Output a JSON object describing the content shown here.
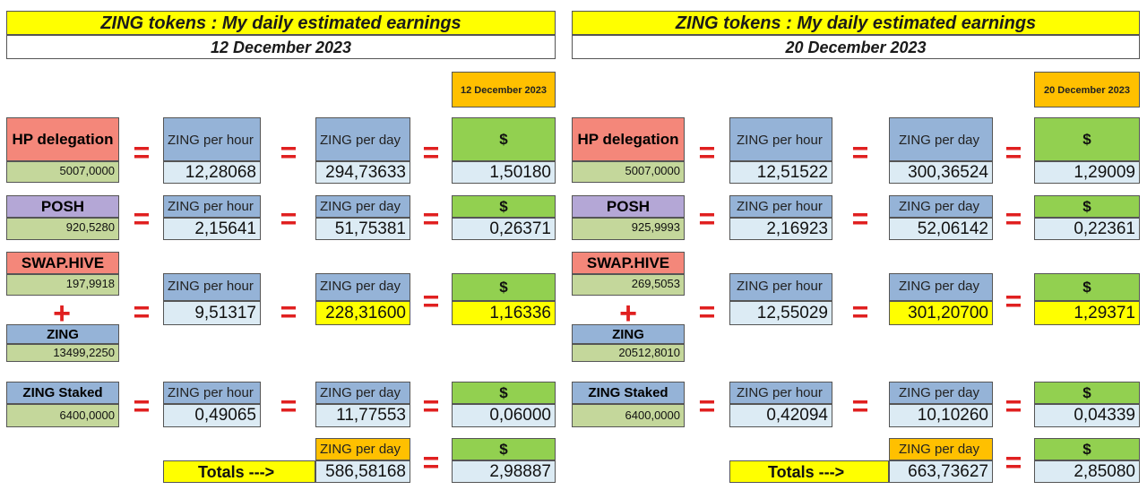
{
  "labels": {
    "title": "ZING tokens : My daily estimated earnings",
    "hp": "HP delegation",
    "posh": "POSH",
    "swap": "SWAP.HIVE",
    "zing": "ZING",
    "zing_staked": "ZING Staked",
    "per_hour": "ZING per hour",
    "per_day": "ZING per day",
    "dollar": "$",
    "equals": "=",
    "plus": "+",
    "totals": "Totals --->"
  },
  "colors": {
    "title_bg": "#ffff00",
    "hp_bg": "#f4877a",
    "posh_bg": "#b4a7d6",
    "header_blue": "#95b3d7",
    "value_bg": "#dcebf4",
    "source_value_bg": "#c4d79b",
    "dollar_green": "#92d050",
    "date_orange": "#ffc000",
    "highlight_yellow": "#ffff00",
    "equals_red": "#e02020"
  },
  "panels": [
    {
      "date": "12 December 2023",
      "rows": {
        "hp": {
          "amount": "5007,0000",
          "per_hour": "12,28068",
          "per_day": "294,73633",
          "usd": "1,50180"
        },
        "posh": {
          "amount": "920,5280",
          "per_hour": "2,15641",
          "per_day": "51,75381",
          "usd": "0,26371"
        },
        "pool": {
          "swap_amount": "197,9918",
          "zing_amount": "13499,2250",
          "per_hour": "9,51317",
          "per_day": "228,31600",
          "usd": "1,16336"
        },
        "staked": {
          "amount": "6400,0000",
          "per_hour": "0,49065",
          "per_day": "11,77553",
          "usd": "0,06000"
        }
      },
      "totals": {
        "per_day": "586,58168",
        "usd": "2,98887"
      }
    },
    {
      "date": "20 December 2023",
      "rows": {
        "hp": {
          "amount": "5007,0000",
          "per_hour": "12,51522",
          "per_day": "300,36524",
          "usd": "1,29009"
        },
        "posh": {
          "amount": "925,9993",
          "per_hour": "2,16923",
          "per_day": "52,06142",
          "usd": "0,22361"
        },
        "pool": {
          "swap_amount": "269,5053",
          "zing_amount": "20512,8010",
          "per_hour": "12,55029",
          "per_day": "301,20700",
          "usd": "1,29371"
        },
        "staked": {
          "amount": "6400,0000",
          "per_hour": "0,42094",
          "per_day": "10,10260",
          "usd": "0,04339"
        }
      },
      "totals": {
        "per_day": "663,73627",
        "usd": "2,85080"
      }
    }
  ]
}
